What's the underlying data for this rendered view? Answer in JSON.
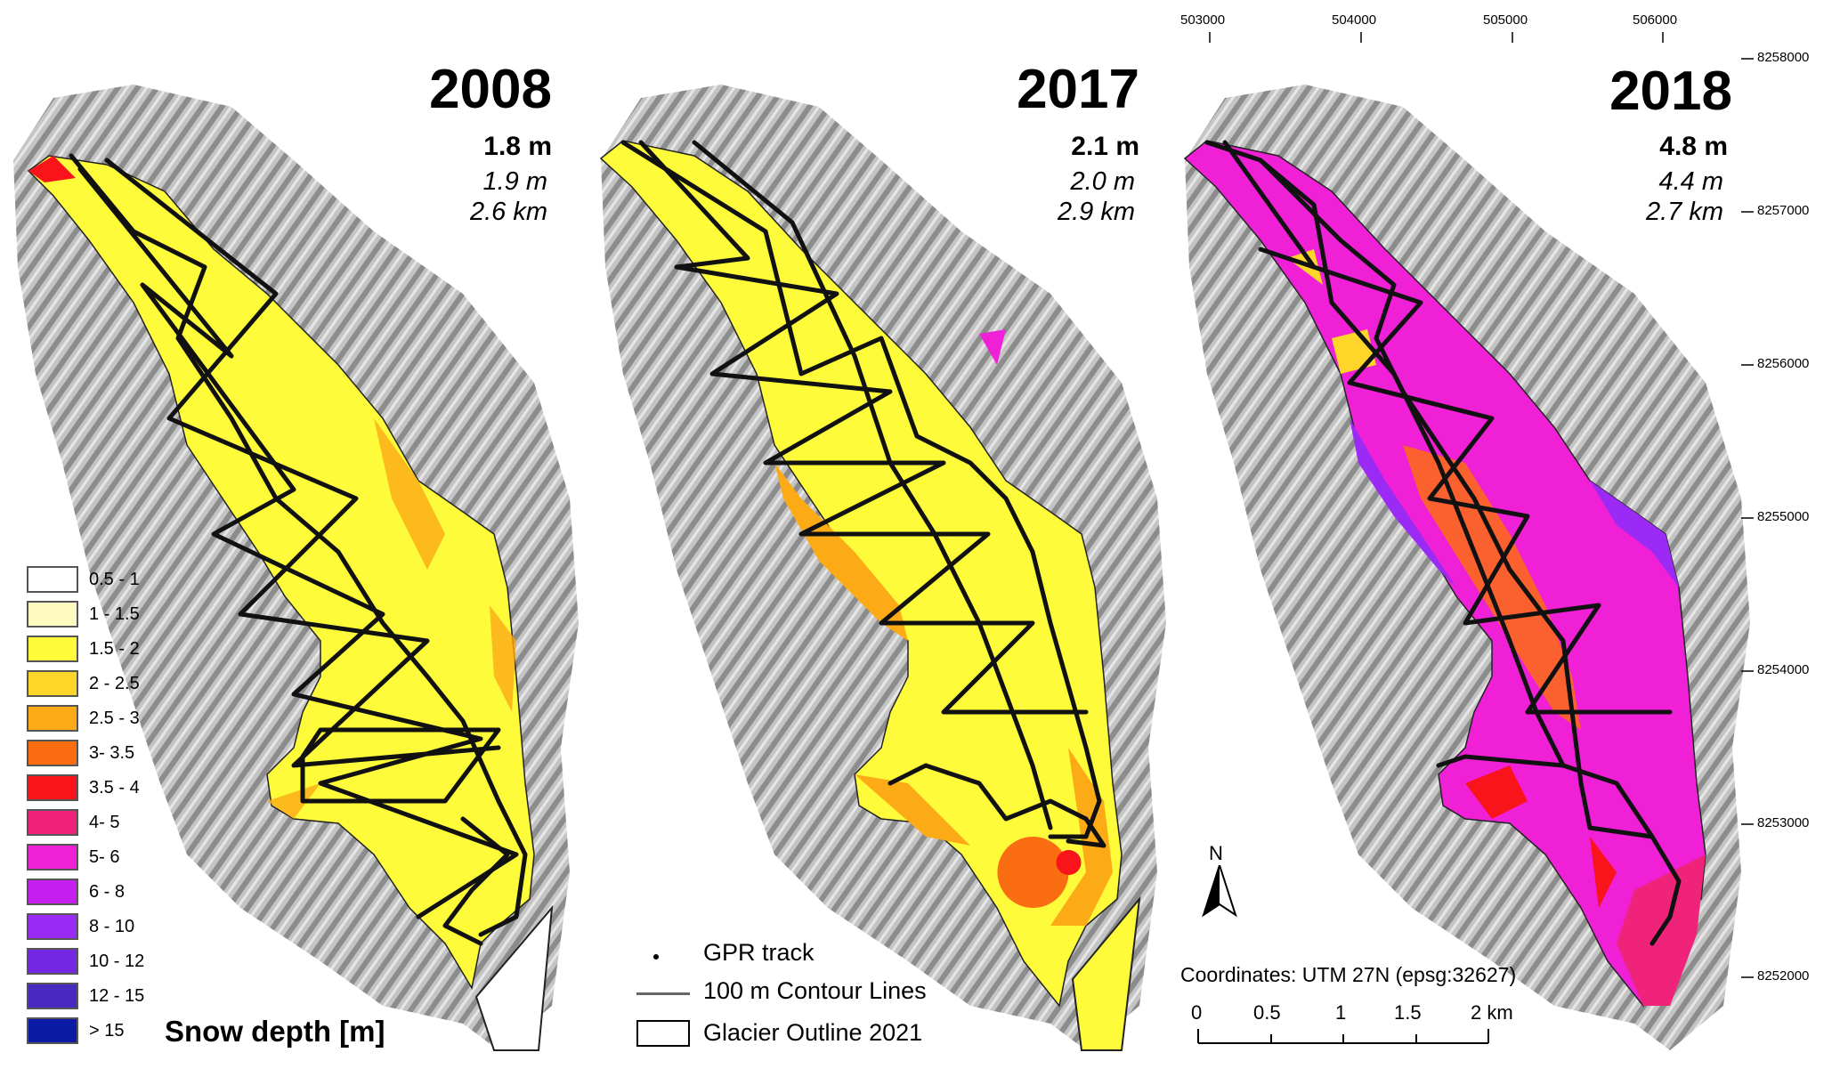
{
  "panels": [
    {
      "year": "2008",
      "mean": "1.8 m",
      "median": "1.9 m",
      "track_length": "2.6 km"
    },
    {
      "year": "2017",
      "mean": "2.1 m",
      "median": "2.0 m",
      "track_length": "2.9 km"
    },
    {
      "year": "2018",
      "mean": "4.8 m",
      "median": "4.4 m",
      "track_length": "2.7 km"
    }
  ],
  "snow_legend": {
    "title": "Snow depth [m]",
    "classes": [
      {
        "label": "0.5 - 1",
        "color": "#ffffff"
      },
      {
        "label": "1 - 1.5",
        "color": "#fffbc0"
      },
      {
        "label": "1.5 - 2",
        "color": "#fdfb3a"
      },
      {
        "label": "2 - 2.5",
        "color": "#fed62a"
      },
      {
        "label": "2.5 - 3",
        "color": "#fdaa17"
      },
      {
        "label": "3- 3.5",
        "color": "#fb6d11"
      },
      {
        "label": "3.5 - 4",
        "color": "#f8141a"
      },
      {
        "label": "4- 5",
        "color": "#f0237a"
      },
      {
        "label": "5- 6",
        "color": "#ef20d6"
      },
      {
        "label": "6 - 8",
        "color": "#c51ff0"
      },
      {
        "label": "8 - 10",
        "color": "#9b2af5"
      },
      {
        "label": "10 - 12",
        "color": "#7327e0"
      },
      {
        "label": "12 - 15",
        "color": "#4729c2"
      },
      {
        "label": "> 15",
        "color": "#0c1ba6"
      }
    ]
  },
  "map_legend": {
    "gpr": "GPR track",
    "contours": "100 m Contour Lines",
    "outline": "Glacier Outline 2021"
  },
  "north_label": "N",
  "coordinate_system": "Coordinates: UTM 27N (epsg:32627)",
  "scale_bar": {
    "labels": [
      "0",
      "0.5",
      "1",
      "1.5",
      "2 km"
    ]
  },
  "easting_ticks": [
    "503000",
    "504000",
    "505000",
    "506000"
  ],
  "northing_ticks": [
    "8258000",
    "8257000",
    "8256000",
    "8255000",
    "8254000",
    "8253000",
    "8252000"
  ]
}
